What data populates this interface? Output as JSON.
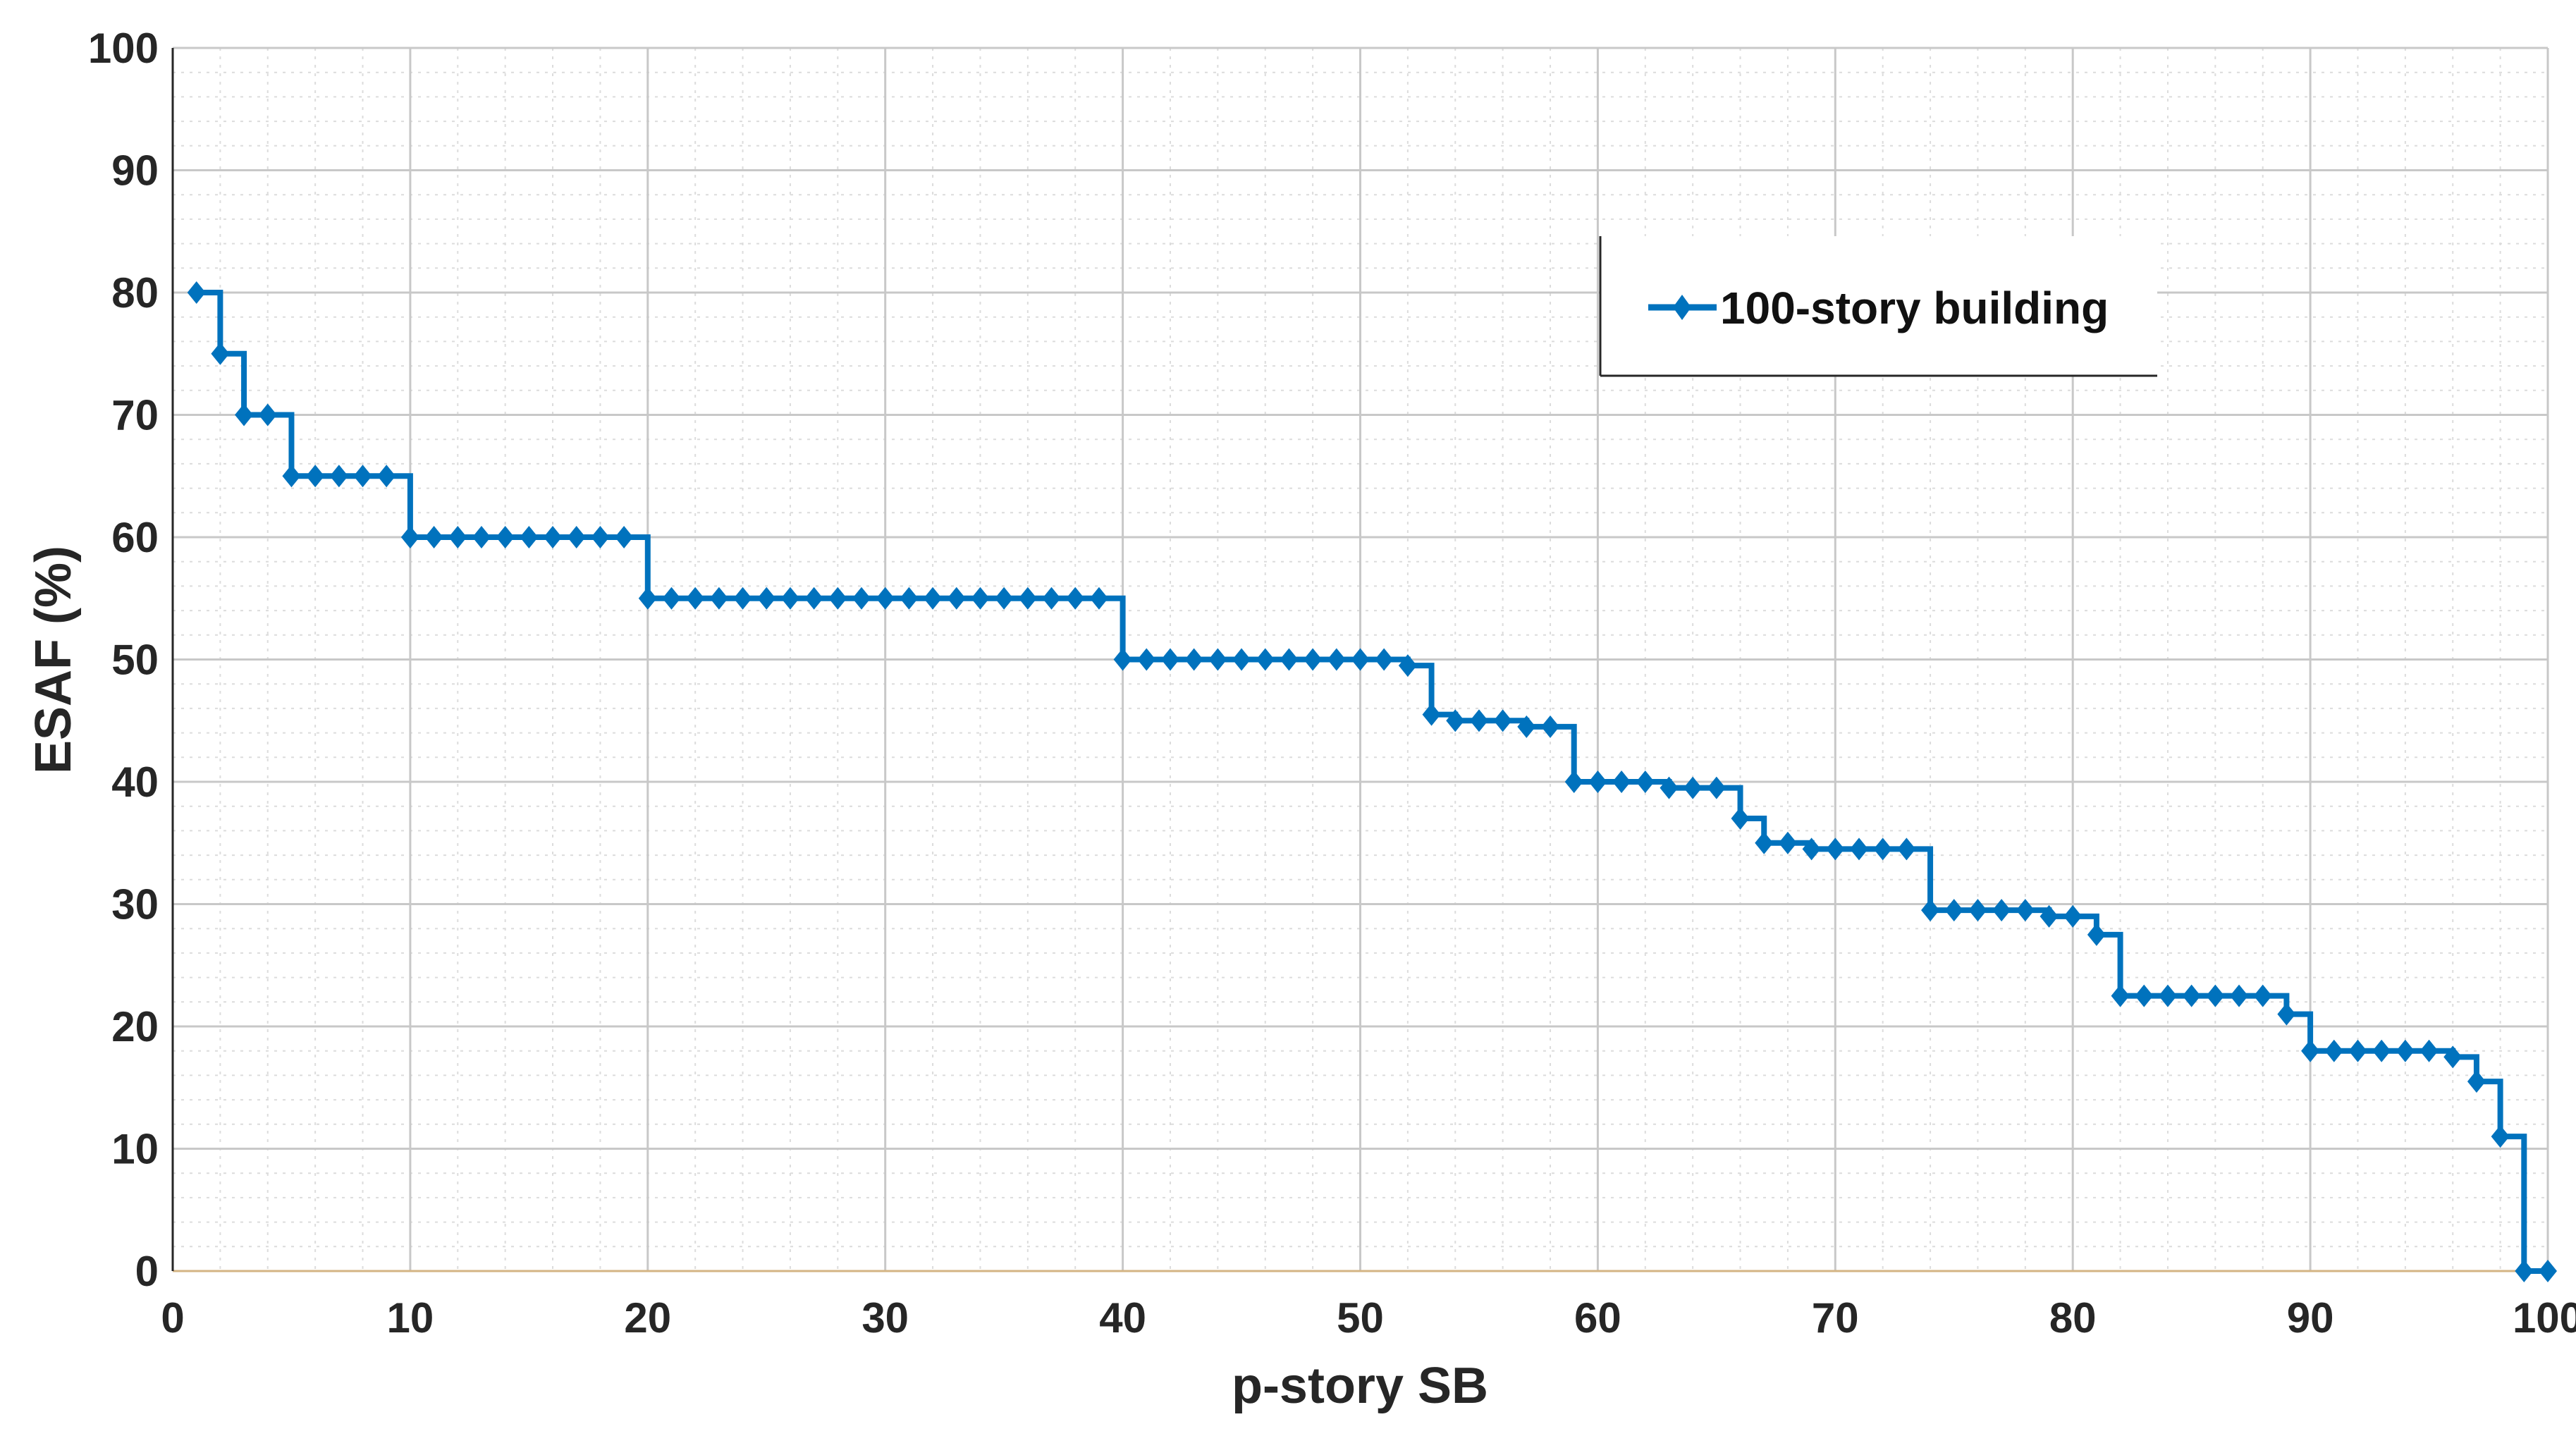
{
  "chart_data": {
    "type": "line",
    "step": true,
    "title": "",
    "xlabel": "p-story SB",
    "ylabel": "ESAF (%)",
    "xlim": [
      0,
      100
    ],
    "ylim": [
      0,
      100
    ],
    "xticks": [
      "0",
      "10",
      "20",
      "30",
      "40",
      "50",
      "60",
      "70",
      "80",
      "90",
      "100"
    ],
    "yticks": [
      "0",
      "10",
      "20",
      "30",
      "40",
      "50",
      "60",
      "70",
      "80",
      "90",
      "100"
    ],
    "grid": true,
    "minor_grid": true,
    "legend_position": "top-right",
    "colors": {
      "series": "#0072BD",
      "baseline": "#D4B483",
      "grid": "#c8c8c8"
    },
    "series": [
      {
        "name": "100-story building",
        "marker": "diamond",
        "x": [
          1,
          2,
          3,
          4,
          5,
          6,
          7,
          8,
          9,
          10,
          11,
          12,
          13,
          14,
          15,
          16,
          17,
          18,
          19,
          20,
          21,
          22,
          23,
          24,
          25,
          26,
          27,
          28,
          29,
          30,
          31,
          32,
          33,
          34,
          35,
          36,
          37,
          38,
          39,
          40,
          41,
          42,
          43,
          44,
          45,
          46,
          47,
          48,
          49,
          50,
          51,
          52,
          53,
          54,
          55,
          56,
          57,
          58,
          59,
          60,
          61,
          62,
          63,
          64,
          65,
          66,
          67,
          68,
          69,
          70,
          71,
          72,
          73,
          74,
          75,
          76,
          77,
          78,
          79,
          80,
          81,
          82,
          83,
          84,
          85,
          86,
          87,
          88,
          89,
          90,
          91,
          92,
          93,
          94,
          95,
          96,
          97,
          98,
          99,
          100
        ],
        "y": [
          80,
          75,
          70,
          70,
          65,
          65,
          65,
          65,
          65,
          60,
          60,
          60,
          60,
          60,
          60,
          60,
          60,
          60,
          60,
          55,
          55,
          55,
          55,
          55,
          55,
          55,
          55,
          55,
          55,
          55,
          55,
          55,
          55,
          55,
          55,
          55,
          55,
          55,
          55,
          50,
          50,
          50,
          50,
          50,
          50,
          50,
          50,
          50,
          50,
          50,
          50,
          49.5,
          45.5,
          45,
          45,
          45,
          44.5,
          44.5,
          40,
          40,
          40,
          40,
          39.5,
          39.5,
          39.5,
          37,
          35,
          35,
          34.5,
          34.5,
          34.5,
          34.5,
          34.5,
          29.5,
          29.5,
          29.5,
          29.5,
          29.5,
          29,
          29,
          27.5,
          22.5,
          22.5,
          22.5,
          22.5,
          22.5,
          22.5,
          22.5,
          21,
          18,
          18,
          18,
          18,
          18,
          18,
          17.5,
          15.5,
          11,
          0,
          0
        ]
      }
    ]
  }
}
